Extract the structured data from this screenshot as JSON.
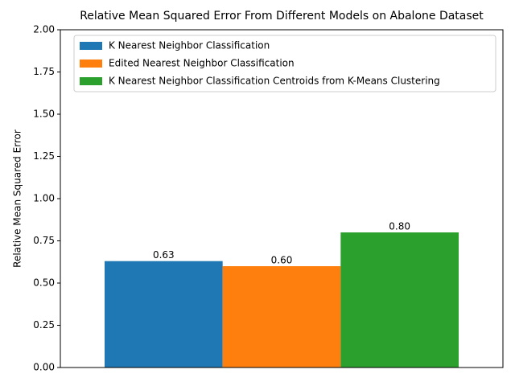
{
  "chart_data": {
    "type": "bar",
    "title": "Relative Mean Squared Error From Different Models on Abalone Dataset",
    "ylabel": "Relative Mean Squared Error",
    "categories": [
      null
    ],
    "series": [
      {
        "name": "K Nearest Neighbor Classification",
        "color": "#1f77b4",
        "values": [
          0.63
        ],
        "value_labels": [
          "0.63"
        ]
      },
      {
        "name": "Edited Nearest Neighbor Classification",
        "color": "#ff7f0e",
        "values": [
          0.6
        ],
        "value_labels": [
          "0.60"
        ]
      },
      {
        "name": "K Nearest Neighbor Classification Centroids from K-Means Clustering",
        "color": "#2ca02c",
        "values": [
          0.8
        ],
        "value_labels": [
          "0.80"
        ]
      }
    ],
    "ylim": [
      0,
      2
    ],
    "yticks": [
      {
        "value": 0,
        "label": "0.00"
      },
      {
        "value": 0.25,
        "label": "0.25"
      },
      {
        "value": 0.5,
        "label": "0.50"
      },
      {
        "value": 0.75,
        "label": "0.75"
      },
      {
        "value": 1,
        "label": "1.00"
      },
      {
        "value": 1.25,
        "label": "1.25"
      },
      {
        "value": 1.5,
        "label": "1.50"
      },
      {
        "value": 1.75,
        "label": "1.75"
      },
      {
        "value": 2,
        "label": "2.00"
      }
    ],
    "legend": "upper left",
    "grid": false
  }
}
